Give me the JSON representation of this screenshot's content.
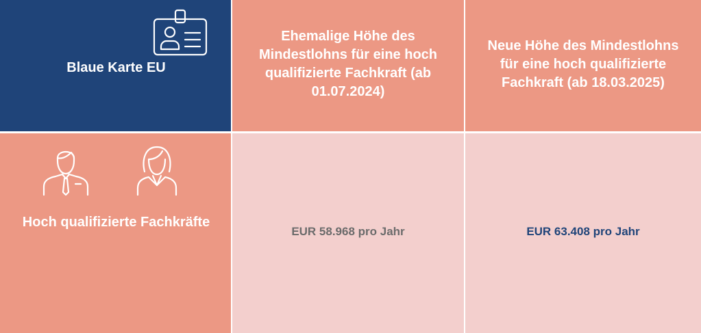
{
  "header": {
    "brand_title": "Blaue Karte EU",
    "previous_column": "Ehemalige Höhe des Mindestlohns für eine hoch qualifizierte Fachkraft (ab 01.07.2024)",
    "new_column": "Neue Höhe des Mindestlohns für eine hoch qualifizierte Fachkraft (ab 18.03.2025)"
  },
  "row": {
    "label": "Hoch qualifizierte Fachkräfte",
    "previous_value": "EUR 58.968 pro Jahr",
    "new_value": "EUR 63.408 pro Jahr"
  },
  "icons": {
    "card": "id-card-icon",
    "man": "man-icon",
    "woman": "woman-icon"
  },
  "colors": {
    "navy": "#1f4479",
    "salmon": "#ec9884",
    "light_pink": "#f3cfcd",
    "old_value": "#6b6b6b",
    "new_value": "#1f4479"
  }
}
